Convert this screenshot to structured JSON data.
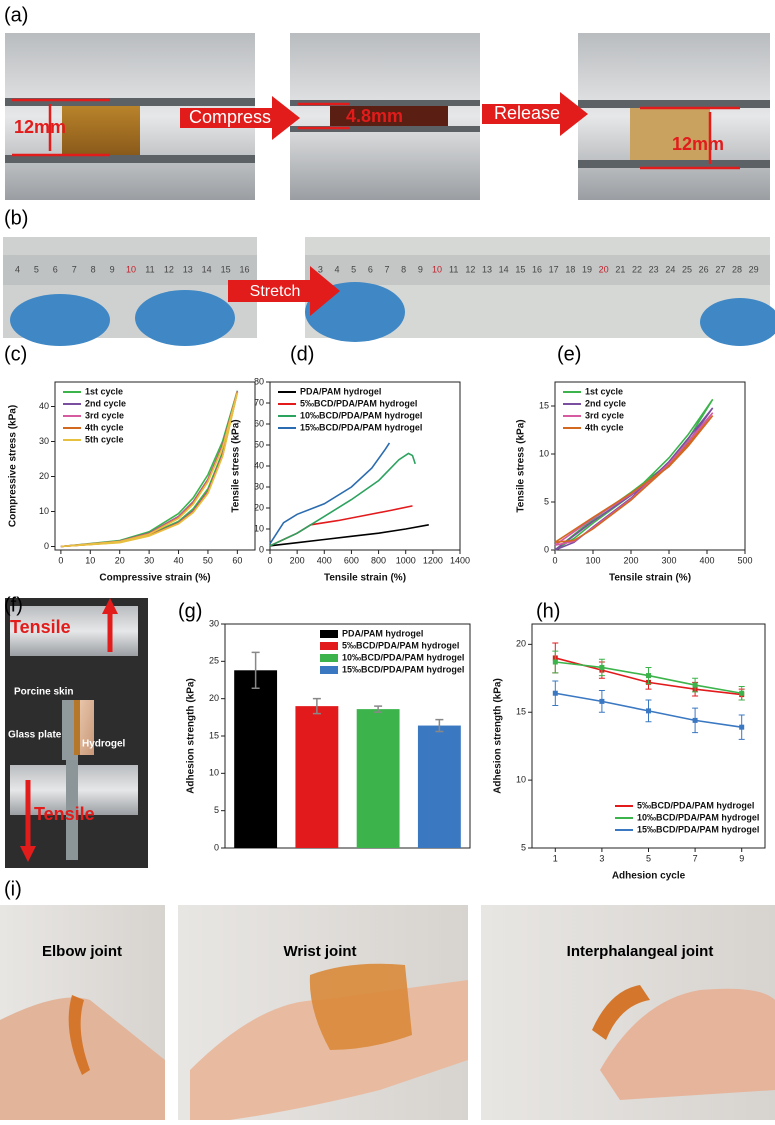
{
  "panel_labels": [
    "(a)",
    "(b)",
    "(c)",
    "(d)",
    "(e)",
    "(f)",
    "(g)",
    "(h)",
    "(i)"
  ],
  "photos": {
    "a": {
      "height_before": "12mm",
      "compress": "Compress",
      "height_compressed": "4.8mm",
      "release": "Release",
      "height_after": "12mm"
    },
    "b": {
      "stretch": "Stretch",
      "ruler_left": [
        4,
        5,
        6,
        7,
        8,
        9,
        10,
        11,
        12,
        13,
        14,
        15,
        16
      ],
      "ruler_right": [
        3,
        4,
        5,
        6,
        7,
        8,
        9,
        10,
        11,
        12,
        13,
        14,
        15,
        16,
        17,
        18,
        19,
        20,
        21,
        22,
        23,
        24,
        25,
        26,
        27,
        28,
        29
      ]
    },
    "f": {
      "tensile_top": "Tensile",
      "porcine_skin": "Porcine skin",
      "glass_plate": "Glass plate",
      "hydrogel": "Hydrogel",
      "tensile_bottom": "Tensile"
    },
    "i": {
      "elbow": "Elbow joint",
      "wrist": "Wrist joint",
      "interphalangeal": "Interphalangeal joint"
    }
  },
  "chart_data": [
    {
      "type": "line",
      "xlabel": "Compressive strain (%)",
      "ylabel": "Compressive stress (kPa)",
      "x": [
        0,
        20,
        30,
        40,
        45,
        50,
        55,
        60,
        55,
        50,
        45,
        40,
        30,
        20,
        0
      ],
      "xlim": [
        -2,
        66
      ],
      "xticks": [
        0,
        10,
        20,
        30,
        40,
        50,
        60
      ],
      "ylim": [
        -1,
        47
      ],
      "yticks": [
        0,
        10,
        20,
        30,
        40
      ],
      "legend": "upper left",
      "series": [
        {
          "name": "1st cycle",
          "color": "#3cb44b",
          "values": [
            0,
            1.7,
            4.2,
            9.4,
            13.9,
            20.5,
            30.1,
            44.5,
            27,
            16.5,
            10.8,
            7.2,
            3.4,
            1.3,
            0
          ]
        },
        {
          "name": "2nd cycle",
          "color": "#7b4fa0",
          "values": [
            0,
            1.5,
            3.8,
            8.6,
            12.8,
            19.2,
            29,
            44.2,
            26.4,
            15.8,
            10.2,
            6.8,
            3.2,
            1.2,
            0
          ]
        },
        {
          "name": "3rd cycle",
          "color": "#d65aa0",
          "values": [
            0,
            1.5,
            3.7,
            8.4,
            12.6,
            19,
            28.8,
            44.3,
            26.2,
            15.6,
            10,
            6.7,
            3.1,
            1.2,
            0
          ]
        },
        {
          "name": "4th cycle",
          "color": "#d2691e",
          "values": [
            0,
            1.4,
            3.6,
            8.2,
            12.4,
            18.8,
            28.6,
            44.1,
            26,
            15.4,
            9.9,
            6.6,
            3.1,
            1.2,
            0
          ]
        },
        {
          "name": "5th cycle",
          "color": "#e8c040",
          "values": [
            0,
            1.4,
            3.5,
            8,
            12.1,
            18.5,
            28.3,
            44,
            25.8,
            15.2,
            9.7,
            6.5,
            3,
            1.1,
            0
          ]
        }
      ]
    },
    {
      "type": "line",
      "xlabel": "Tensile strain (%)",
      "ylabel": "Tensile stress (kPa)",
      "xlim": [
        0,
        1400
      ],
      "xticks": [
        0,
        200,
        400,
        600,
        800,
        1000,
        1200,
        1400
      ],
      "ylim": [
        0,
        80
      ],
      "yticks": [
        0,
        10,
        20,
        30,
        40,
        50,
        60,
        70,
        80
      ],
      "legend": "upper left",
      "series": [
        {
          "name": "PDA/PAM hydrogel",
          "color": "#000000",
          "x": [
            0,
            200,
            400,
            600,
            800,
            1000,
            1170
          ],
          "values": [
            2,
            3.5,
            5,
            6.5,
            8,
            10,
            12
          ]
        },
        {
          "name": "5‰BCD/PDA/PAM hydrogel",
          "color": "#e31a1c",
          "x": [
            0,
            100,
            200,
            300,
            500,
            700,
            900,
            1050
          ],
          "values": [
            2,
            5,
            8,
            12,
            14,
            16.5,
            19,
            21
          ]
        },
        {
          "name": "10‰BCD/PDA/PAM hydrogel",
          "color": "#2ca25f",
          "x": [
            0,
            200,
            400,
            600,
            800,
            950,
            1020,
            1050,
            1070
          ],
          "values": [
            2,
            8,
            16,
            24,
            33,
            43,
            46,
            45,
            41
          ]
        },
        {
          "name": "15‰BCD/PDA/PAM hydrogel",
          "color": "#2b6cb0",
          "x": [
            0,
            100,
            200,
            400,
            600,
            750,
            850,
            880
          ],
          "values": [
            3,
            13,
            17,
            22,
            30,
            39,
            48,
            51
          ]
        }
      ]
    },
    {
      "type": "line",
      "xlabel": "Tensile strain (%)",
      "ylabel": "Tensile stress (kPa)",
      "x": [
        0,
        100,
        200,
        300,
        350,
        415,
        350,
        300,
        200,
        100,
        50,
        0
      ],
      "xlim": [
        0,
        500
      ],
      "xticks": [
        0,
        100,
        200,
        300,
        400,
        500
      ],
      "ylim": [
        0,
        17.5
      ],
      "yticks": [
        0,
        5,
        10,
        15
      ],
      "legend": "upper left",
      "series": [
        {
          "name": "1st cycle",
          "color": "#3cb44b",
          "values": [
            0,
            3.2,
            6,
            9,
            11.5,
            15.7,
            12,
            9.6,
            5.7,
            2.8,
            1.2,
            0
          ]
        },
        {
          "name": "2nd cycle",
          "color": "#7b4fa0",
          "values": [
            0,
            3,
            5.7,
            8.7,
            11.2,
            14.8,
            11.6,
            9.2,
            5.4,
            2.4,
            0.8,
            0
          ]
        },
        {
          "name": "3rd cycle",
          "color": "#d65aa0",
          "values": [
            0.5,
            3.3,
            5.8,
            8.8,
            11,
            14.3,
            11.3,
            9,
            5.3,
            2.3,
            0.9,
            0.5
          ]
        },
        {
          "name": "4th cycle",
          "color": "#d2691e",
          "values": [
            0.8,
            3.4,
            5.9,
            8.7,
            10.8,
            14,
            11,
            8.8,
            5.2,
            2.2,
            1,
            0.8
          ]
        }
      ]
    },
    {
      "type": "bar",
      "ylabel": "Adhesion strength (kPa)",
      "categories": [
        null
      ],
      "ylim": [
        0,
        30
      ],
      "yticks": [
        0,
        5,
        10,
        15,
        20,
        25,
        30
      ],
      "legend": "upper right",
      "error_color": "#888888",
      "series": [
        {
          "name": "PDA/PAM hydrogel",
          "color": "#000000",
          "values": [
            23.8
          ],
          "errors": [
            2.4
          ]
        },
        {
          "name": "5‰BCD/PDA/PAM hydrogel",
          "color": "#e31a1c",
          "values": [
            19
          ],
          "errors": [
            1
          ]
        },
        {
          "name": "10‰BCD/PDA/PAM hydrogel",
          "color": "#3cb44b",
          "values": [
            18.6
          ],
          "errors": [
            0.4
          ]
        },
        {
          "name": "15‰BCD/PDA/PAM hydrogel",
          "color": "#3a78c2",
          "values": [
            16.4
          ],
          "errors": [
            0.8
          ]
        }
      ]
    },
    {
      "type": "line",
      "xlabel": "Adhesion cycle",
      "ylabel": "Adhesion strength (kPa)",
      "markers": true,
      "x": [
        1,
        3,
        5,
        7,
        9
      ],
      "xlim": [
        0,
        10
      ],
      "xticks": [
        1,
        3,
        5,
        7,
        9
      ],
      "ylim": [
        5,
        21.5
      ],
      "yticks": [
        5,
        10,
        15,
        20
      ],
      "legend": "lower right",
      "series": [
        {
          "name": "5‰BCD/PDA/PAM hydrogel",
          "color": "#e31a1c",
          "values": [
            19,
            18.1,
            17.2,
            16.7,
            16.3
          ],
          "errors": [
            1.1,
            0.6,
            0.5,
            0.5,
            0.4
          ]
        },
        {
          "name": "10‰BCD/PDA/PAM hydrogel",
          "color": "#3cb44b",
          "values": [
            18.7,
            18.3,
            17.7,
            17,
            16.4
          ],
          "errors": [
            0.8,
            0.6,
            0.6,
            0.5,
            0.5
          ]
        },
        {
          "name": "15‰BCD/PDA/PAM hydrogel",
          "color": "#3a78c2",
          "values": [
            16.4,
            15.8,
            15.1,
            14.4,
            13.9
          ],
          "errors": [
            0.9,
            0.8,
            0.8,
            0.9,
            0.9
          ]
        }
      ]
    }
  ]
}
